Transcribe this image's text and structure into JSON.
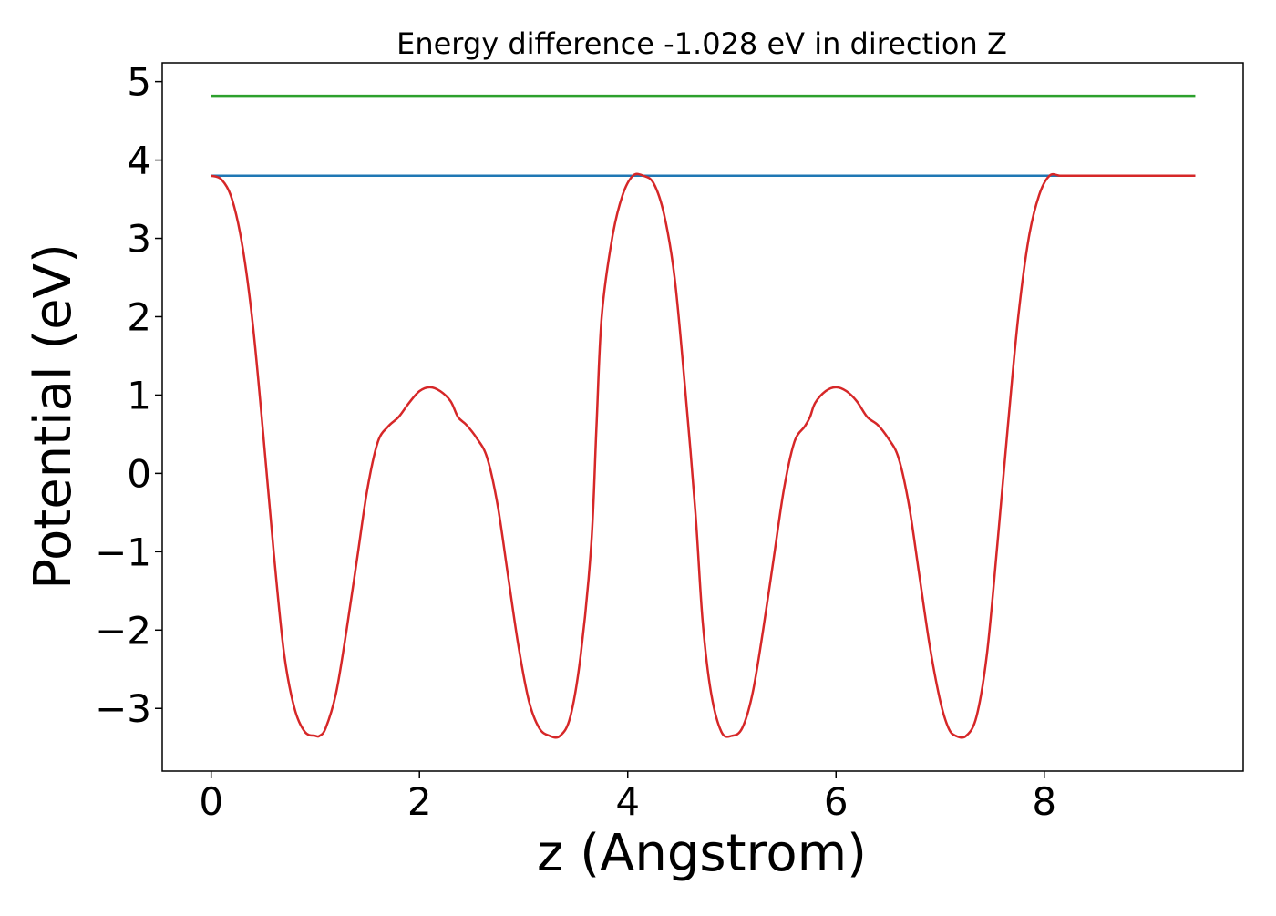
{
  "chart_data": {
    "type": "line",
    "title": "Energy difference -1.028 eV in direction Z",
    "xlabel": "z (Angstrom)",
    "ylabel": "Potential (eV)",
    "xlim": [
      -0.47,
      9.91
    ],
    "ylim": [
      -3.8,
      5.24
    ],
    "x_ticks": [
      0,
      2,
      4,
      6,
      8
    ],
    "x_tick_labels": [
      "0",
      "2",
      "4",
      "6",
      "8"
    ],
    "y_ticks": [
      -3,
      -2,
      -1,
      0,
      1,
      2,
      3,
      4,
      5
    ],
    "y_tick_labels": [
      "−3",
      "−2",
      "−1",
      "0",
      "1",
      "2",
      "3",
      "4",
      "5"
    ],
    "grid": false,
    "legend": "none",
    "series": [
      {
        "color": "#2ca02c",
        "x": [
          0.0,
          9.45
        ],
        "y": [
          4.82,
          4.82
        ]
      },
      {
        "color": "#1f77b4",
        "x": [
          0.0,
          9.45
        ],
        "y": [
          3.8,
          3.8
        ]
      },
      {
        "color": "#d62728",
        "x": [
          0.0,
          0.1,
          0.2,
          0.3,
          0.4,
          0.5,
          0.6,
          0.7,
          0.8,
          0.9,
          1.0,
          1.04,
          1.1,
          1.2,
          1.3,
          1.4,
          1.5,
          1.6,
          1.7,
          1.8,
          1.9,
          2.0,
          2.1,
          2.2,
          2.3,
          2.37,
          2.45,
          2.55,
          2.65,
          2.75,
          2.85,
          2.95,
          3.05,
          3.15,
          3.25,
          3.35,
          3.45,
          3.55,
          3.65,
          3.7,
          3.75,
          3.85,
          3.95,
          4.05,
          4.15,
          4.25,
          4.35,
          4.45,
          4.55,
          4.65,
          4.72,
          4.8,
          4.9,
          5.0,
          5.1,
          5.2,
          5.3,
          5.4,
          5.5,
          5.6,
          5.7,
          5.75,
          5.8,
          5.9,
          6.0,
          6.1,
          6.2,
          6.3,
          6.4,
          6.5,
          6.6,
          6.7,
          6.8,
          6.9,
          7.0,
          7.08,
          7.15,
          7.25,
          7.35,
          7.45,
          7.55,
          7.65,
          7.75,
          7.85,
          7.95,
          8.05,
          8.15,
          8.25,
          8.35,
          8.42,
          8.5,
          8.6,
          8.7,
          8.8,
          8.9,
          9.0,
          9.1,
          9.2,
          9.3,
          9.4,
          9.45
        ],
        "y": [
          3.8,
          3.75,
          3.5,
          2.9,
          1.9,
          0.5,
          -1.0,
          -2.3,
          -3.0,
          -3.3,
          -3.35,
          -3.35,
          -3.25,
          -2.8,
          -2.0,
          -1.1,
          -0.2,
          0.4,
          0.6,
          0.72,
          0.9,
          1.05,
          1.1,
          1.05,
          0.92,
          0.72,
          0.62,
          0.45,
          0.2,
          -0.4,
          -1.3,
          -2.2,
          -2.9,
          -3.25,
          -3.35,
          -3.35,
          -3.1,
          -2.3,
          -0.9,
          0.6,
          2.0,
          3.0,
          3.55,
          3.8,
          3.8,
          3.7,
          3.3,
          2.5,
          1.1,
          -0.5,
          -1.9,
          -2.8,
          -3.3,
          -3.35,
          -3.25,
          -2.8,
          -2.0,
          -1.1,
          -0.2,
          0.4,
          0.6,
          0.72,
          0.9,
          1.05,
          1.1,
          1.05,
          0.92,
          0.72,
          0.62,
          0.45,
          0.2,
          -0.4,
          -1.3,
          -2.2,
          -2.9,
          -3.25,
          -3.35,
          -3.35,
          -3.1,
          -2.3,
          -0.9,
          0.6,
          2.0,
          3.0,
          3.55,
          3.8,
          3.8,
          3.8,
          3.8,
          3.8,
          3.8,
          3.8,
          3.8,
          3.8,
          3.8,
          3.8,
          3.8,
          3.8,
          3.8,
          3.8,
          3.8
        ]
      }
    ]
  }
}
